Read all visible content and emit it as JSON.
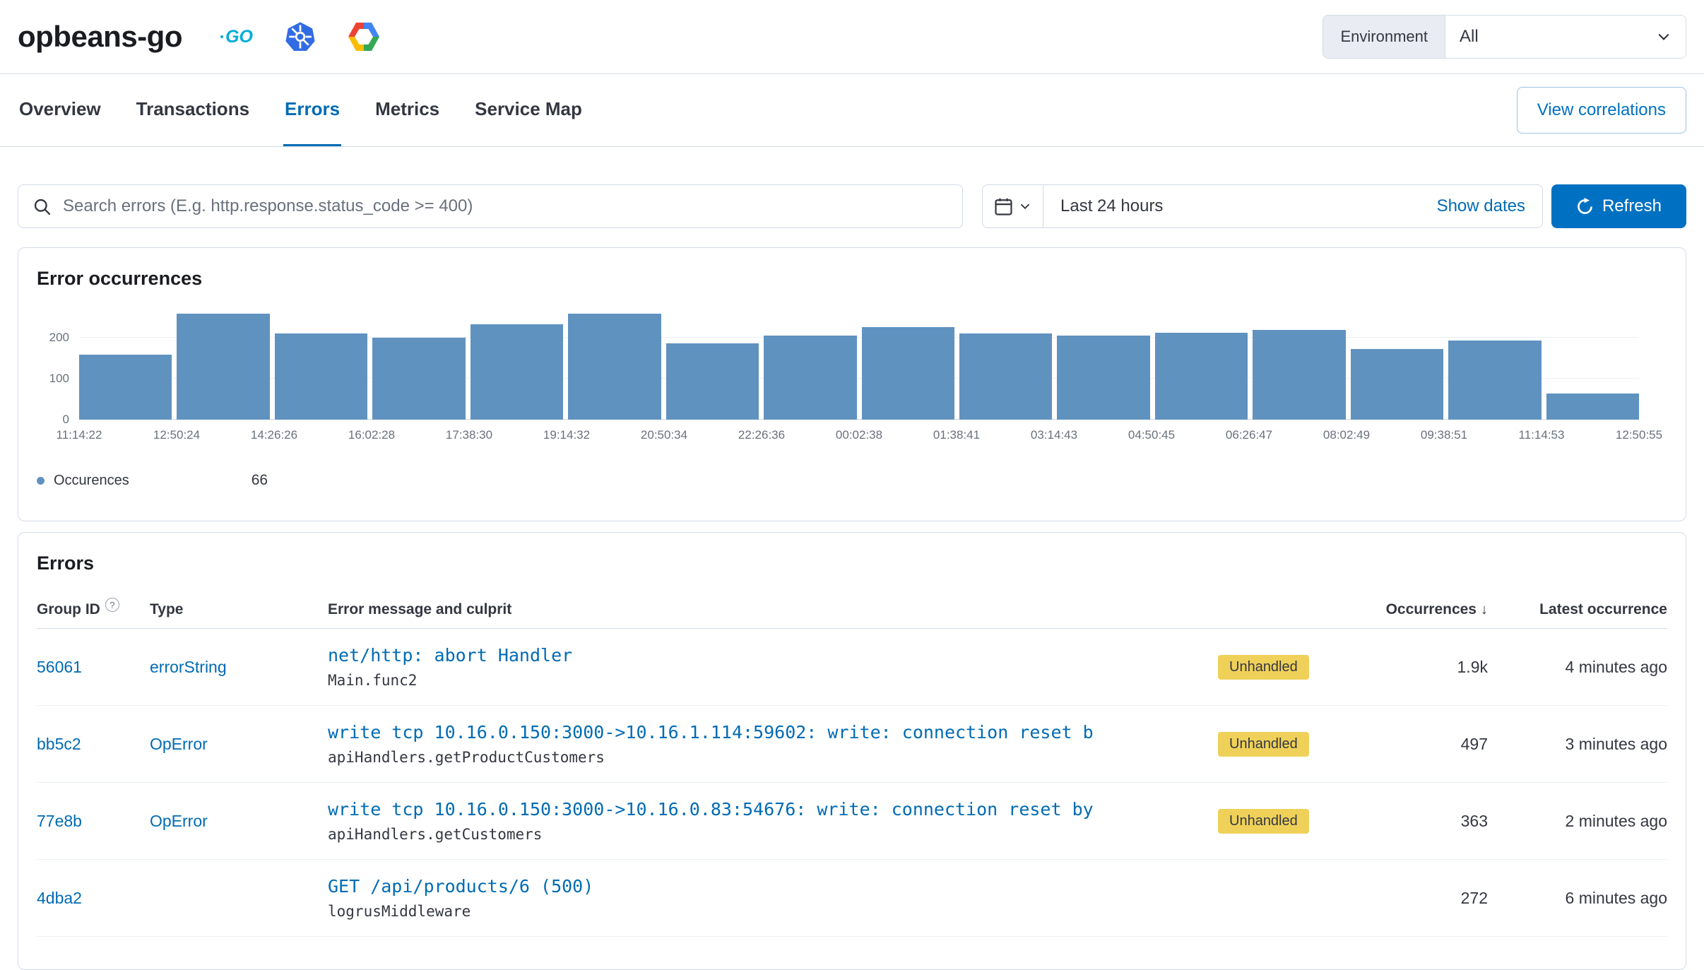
{
  "header": {
    "service_name": "opbeans-go",
    "environment_label": "Environment",
    "environment_value": "All",
    "go_badge_text": "GO"
  },
  "tabs": {
    "items": [
      {
        "label": "Overview",
        "active": false
      },
      {
        "label": "Transactions",
        "active": false
      },
      {
        "label": "Errors",
        "active": true
      },
      {
        "label": "Metrics",
        "active": false
      },
      {
        "label": "Service Map",
        "active": false
      }
    ],
    "view_correlations_label": "View correlations"
  },
  "search_bar": {
    "placeholder": "Search errors (E.g. http.response.status_code >= 400)",
    "time_range": "Last 24 hours",
    "show_dates_label": "Show dates",
    "refresh_label": "Refresh"
  },
  "chart_panel": {
    "title": "Error occurrences"
  },
  "chart_data": {
    "type": "bar",
    "title": "Error occurrences",
    "series_name": "Occurences",
    "x_tick_labels": [
      "11:14:22",
      "12:50:24",
      "14:26:26",
      "16:02:28",
      "17:38:30",
      "19:14:32",
      "20:50:34",
      "22:26:36",
      "00:02:38",
      "01:38:41",
      "03:14:43",
      "04:50:45",
      "06:26:47",
      "08:02:49",
      "09:38:51",
      "11:14:53",
      "12:50:55"
    ],
    "values": [
      158,
      258,
      210,
      200,
      232,
      258,
      185,
      205,
      226,
      210,
      205,
      212,
      218,
      172,
      192,
      63
    ],
    "y_ticks": [
      0,
      100,
      200
    ],
    "ylim": [
      0,
      275
    ],
    "grid": true,
    "bar_color": "#6092C0",
    "legend": {
      "label": "Occurences",
      "value": "66",
      "position": "bottom-left"
    }
  },
  "errors_panel": {
    "title": "Errors",
    "columns": {
      "group_id": "Group ID",
      "group_id_help": "?",
      "type": "Type",
      "message": "Error message and culprit",
      "occurrences": "Occurrences",
      "sort_arrow": "↓",
      "latest": "Latest occurrence"
    },
    "rows": [
      {
        "group_id": "56061",
        "type": "errorString",
        "message": "net/http: abort Handler",
        "culprit": "Main.func2",
        "badge": "Unhandled",
        "occurrences": "1.9k",
        "latest": "4 minutes ago"
      },
      {
        "group_id": "bb5c2",
        "type": "OpError",
        "message": "write tcp 10.16.0.150:3000->10.16.1.114:59602: write: connection reset b",
        "culprit": "apiHandlers.getProductCustomers",
        "badge": "Unhandled",
        "occurrences": "497",
        "latest": "3 minutes ago"
      },
      {
        "group_id": "77e8b",
        "type": "OpError",
        "message": "write tcp 10.16.0.150:3000->10.16.0.83:54676: write: connection reset by",
        "culprit": "apiHandlers.getCustomers",
        "badge": "Unhandled",
        "occurrences": "363",
        "latest": "2 minutes ago"
      },
      {
        "group_id": "4dba2",
        "type": "",
        "message": "GET /api/products/6 (500)",
        "culprit": "logrusMiddleware",
        "badge": "",
        "occurrences": "272",
        "latest": "6 minutes ago"
      }
    ]
  },
  "colors": {
    "link": "#006BB4",
    "primary": "#0071C2",
    "button-border": "#9FC3E4",
    "bar": "#6092C0",
    "badge-bg": "#EFD159",
    "badge-text": "#343741",
    "text": "#343741",
    "title-text": "#1A1C21",
    "subdued": "#69707D",
    "border": "#D3DAE6",
    "row-border": "#EDF0F4",
    "grid": "#ECEFF4",
    "prepend-bg": "#E9EDF3",
    "go": "#00ACD7",
    "k8s": "#326CE5"
  }
}
